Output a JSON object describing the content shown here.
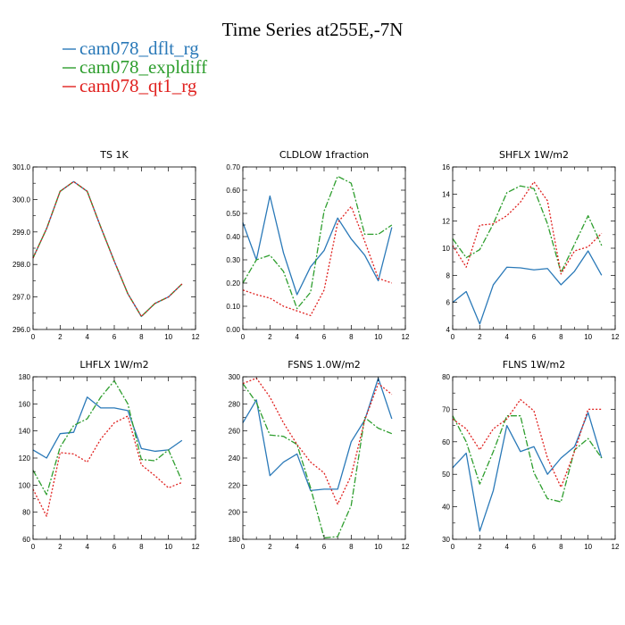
{
  "title": "Time Series at255E,-7N",
  "legend": [
    {
      "name": "cam078_dflt_rg",
      "color": "#2a79b8",
      "dash": "solid"
    },
    {
      "name": "cam078_expldiff",
      "color": "#2e9e2e",
      "dash": "dashdot"
    },
    {
      "name": "cam078_qt1_rg",
      "color": "#e0211f",
      "dash": "dot"
    }
  ],
  "chart_data": [
    {
      "type": "line",
      "title": "TS   1K",
      "x": [
        0,
        1,
        2,
        3,
        4,
        5,
        6,
        7,
        8,
        9,
        10,
        11
      ],
      "xlim": [
        0,
        12
      ],
      "xticks": [
        0,
        2,
        4,
        6,
        8,
        10,
        12
      ],
      "ylim": [
        296.0,
        301.0
      ],
      "yticks": [
        296.0,
        297.0,
        298.0,
        299.0,
        300.0,
        301.0
      ],
      "ytick_labels": [
        "296.0",
        "297.0",
        "298.0",
        "299.0",
        "300.0",
        "301.0"
      ],
      "series": [
        {
          "name": "cam078_dflt_rg",
          "values": [
            298.2,
            299.1,
            300.25,
            300.55,
            300.25,
            299.15,
            298.1,
            297.1,
            296.4,
            296.8,
            297.0,
            297.4
          ]
        },
        {
          "name": "cam078_expldiff",
          "values": [
            298.2,
            299.1,
            300.25,
            300.55,
            300.25,
            299.15,
            298.1,
            297.1,
            296.4,
            296.8,
            297.0,
            297.4
          ]
        },
        {
          "name": "cam078_qt1_rg",
          "values": [
            298.2,
            299.1,
            300.25,
            300.55,
            300.25,
            299.15,
            298.1,
            297.1,
            296.4,
            296.8,
            297.0,
            297.4
          ]
        }
      ]
    },
    {
      "type": "line",
      "title": "CLDLOW   1fraction",
      "x": [
        0,
        1,
        2,
        3,
        4,
        5,
        6,
        7,
        8,
        9,
        10,
        11
      ],
      "xlim": [
        0,
        12
      ],
      "xticks": [
        0,
        2,
        4,
        6,
        8,
        10,
        12
      ],
      "ylim": [
        0.0,
        0.7
      ],
      "yticks": [
        0.0,
        0.1,
        0.2,
        0.3,
        0.4,
        0.5,
        0.6,
        0.7
      ],
      "ytick_labels": [
        "0.00",
        "0.10",
        "0.20",
        "0.30",
        "0.40",
        "0.50",
        "0.60",
        "0.70"
      ],
      "series": [
        {
          "name": "cam078_dflt_rg",
          "values": [
            0.46,
            0.3,
            0.575,
            0.33,
            0.15,
            0.27,
            0.34,
            0.48,
            0.39,
            0.32,
            0.21,
            0.44
          ]
        },
        {
          "name": "cam078_expldiff",
          "values": [
            0.2,
            0.3,
            0.32,
            0.25,
            0.09,
            0.16,
            0.51,
            0.66,
            0.63,
            0.41,
            0.41,
            0.45
          ]
        },
        {
          "name": "cam078_qt1_rg",
          "values": [
            0.17,
            0.15,
            0.135,
            0.1,
            0.08,
            0.06,
            0.17,
            0.46,
            0.53,
            0.38,
            0.22,
            0.2
          ]
        }
      ]
    },
    {
      "type": "line",
      "title": "SHFLX   1W/m2",
      "x": [
        0,
        1,
        2,
        3,
        4,
        5,
        6,
        7,
        8,
        9,
        10,
        11
      ],
      "xlim": [
        0,
        12
      ],
      "xticks": [
        0,
        2,
        4,
        6,
        8,
        10,
        12
      ],
      "ylim": [
        4,
        16
      ],
      "yticks": [
        4,
        6,
        8,
        10,
        12,
        14,
        16
      ],
      "ytick_labels": [
        "4",
        "6",
        "8",
        "10",
        "12",
        "14",
        "16"
      ],
      "series": [
        {
          "name": "cam078_dflt_rg",
          "values": [
            6.0,
            6.8,
            4.4,
            7.3,
            8.6,
            8.55,
            8.4,
            8.5,
            7.3,
            8.3,
            9.8,
            8.0
          ]
        },
        {
          "name": "cam078_expldiff",
          "values": [
            10.7,
            9.3,
            9.9,
            11.8,
            14.1,
            14.6,
            14.4,
            11.8,
            8.2,
            10.3,
            12.4,
            10.2
          ]
        },
        {
          "name": "cam078_qt1_rg",
          "values": [
            10.2,
            8.6,
            11.7,
            11.8,
            12.4,
            13.4,
            14.9,
            13.5,
            8.1,
            9.8,
            10.1,
            11.1
          ]
        }
      ]
    },
    {
      "type": "line",
      "title": "LHFLX   1W/m2",
      "x": [
        0,
        1,
        2,
        3,
        4,
        5,
        6,
        7,
        8,
        9,
        10,
        11
      ],
      "xlim": [
        0,
        12
      ],
      "xticks": [
        0,
        2,
        4,
        6,
        8,
        10,
        12
      ],
      "ylim": [
        60,
        180
      ],
      "yticks": [
        60,
        80,
        100,
        120,
        140,
        160,
        180
      ],
      "ytick_labels": [
        "60",
        "80",
        "100",
        "120",
        "140",
        "160",
        "180"
      ],
      "series": [
        {
          "name": "cam078_dflt_rg",
          "values": [
            126,
            120,
            138,
            139,
            165,
            157,
            157,
            155,
            127,
            125,
            126,
            133
          ]
        },
        {
          "name": "cam078_expldiff",
          "values": [
            111,
            93,
            128,
            144,
            149,
            165,
            177,
            160,
            119,
            118,
            126,
            103
          ]
        },
        {
          "name": "cam078_qt1_rg",
          "values": [
            97,
            77,
            124,
            123,
            117,
            134,
            146,
            151,
            115,
            107,
            98,
            102
          ]
        }
      ]
    },
    {
      "type": "line",
      "title": "FSNS   1.0W/m2",
      "x": [
        0,
        1,
        2,
        3,
        4,
        5,
        6,
        7,
        8,
        9,
        10,
        11
      ],
      "xlim": [
        0,
        12
      ],
      "xticks": [
        0,
        2,
        4,
        6,
        8,
        10,
        12
      ],
      "ylim": [
        180,
        300
      ],
      "yticks": [
        180,
        200,
        220,
        240,
        260,
        280,
        300
      ],
      "ytick_labels": [
        "180",
        "200",
        "220",
        "240",
        "260",
        "280",
        "300"
      ],
      "series": [
        {
          "name": "cam078_dflt_rg",
          "values": [
            266,
            283,
            227,
            237,
            243,
            216,
            217,
            217,
            252,
            268,
            299,
            269
          ]
        },
        {
          "name": "cam078_expldiff",
          "values": [
            295,
            281,
            257,
            256,
            250,
            218,
            181,
            182,
            205,
            270,
            262,
            258
          ]
        },
        {
          "name": "cam078_qt1_rg",
          "values": [
            295,
            299,
            285,
            266,
            250,
            237,
            229,
            206,
            227,
            268,
            295,
            287
          ]
        }
      ]
    },
    {
      "type": "line",
      "title": "FLNS   1W/m2",
      "x": [
        0,
        1,
        2,
        3,
        4,
        5,
        6,
        7,
        8,
        9,
        10,
        11
      ],
      "xlim": [
        0,
        12
      ],
      "xticks": [
        0,
        2,
        4,
        6,
        8,
        10,
        12
      ],
      "ylim": [
        30,
        80
      ],
      "yticks": [
        30,
        40,
        50,
        60,
        70,
        80
      ],
      "ytick_labels": [
        "30",
        "40",
        "50",
        "60",
        "70",
        "80"
      ],
      "series": [
        {
          "name": "cam078_dflt_rg",
          "values": [
            52,
            56.5,
            32.5,
            45,
            65,
            57,
            58.5,
            50,
            55,
            58.5,
            69,
            55
          ]
        },
        {
          "name": "cam078_expldiff",
          "values": [
            68,
            60,
            47,
            57,
            68,
            68,
            50.5,
            42.5,
            41.5,
            57.5,
            61,
            55
          ]
        },
        {
          "name": "cam078_qt1_rg",
          "values": [
            67,
            64,
            57.5,
            64,
            67,
            73,
            69.5,
            55,
            46,
            57,
            70,
            70
          ]
        }
      ]
    }
  ]
}
